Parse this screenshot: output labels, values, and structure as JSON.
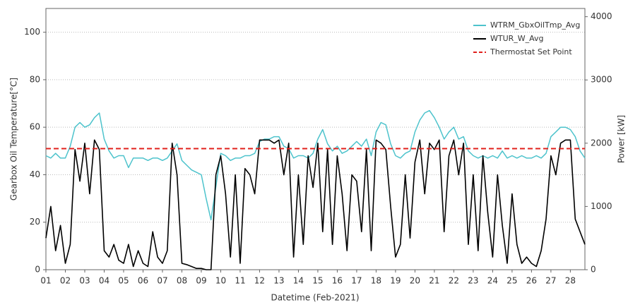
{
  "chart_data": {
    "type": "line",
    "x_label": "Datetime (Feb-2021)",
    "y_label": "Gearbox Oil Temperature[°C]",
    "y2_label": "Power [kW]",
    "xlim": [
      1,
      28.75
    ],
    "ylim": [
      0,
      110
    ],
    "y2lim": [
      0,
      4130
    ],
    "yticks": [
      0,
      20,
      40,
      60,
      80,
      100
    ],
    "y2ticks": [
      0,
      1000,
      2000,
      3000,
      4000
    ],
    "grid": true,
    "legend": "top-right",
    "xticks": [
      {
        "value": 1,
        "label": "01"
      },
      {
        "value": 2,
        "label": "02"
      },
      {
        "value": 3,
        "label": "03"
      },
      {
        "value": 4,
        "label": "04"
      },
      {
        "value": 5,
        "label": "05"
      },
      {
        "value": 6,
        "label": "06"
      },
      {
        "value": 7,
        "label": "07"
      },
      {
        "value": 8,
        "label": "08"
      },
      {
        "value": 9,
        "label": "09"
      },
      10,
      11,
      12,
      13,
      14,
      15,
      16,
      17,
      18,
      19,
      20,
      21,
      22,
      23,
      24,
      25,
      26,
      27,
      28
    ],
    "x": [
      1,
      1.25,
      1.5,
      1.75,
      2,
      2.25,
      2.5,
      2.75,
      3,
      3.25,
      3.5,
      3.75,
      4,
      4.25,
      4.5,
      4.75,
      5,
      5.25,
      5.5,
      5.75,
      6,
      6.25,
      6.5,
      6.75,
      7,
      7.25,
      7.5,
      7.75,
      8,
      8.25,
      8.5,
      8.75,
      9,
      9.25,
      9.5,
      9.75,
      10,
      10.25,
      10.5,
      10.75,
      11,
      11.25,
      11.5,
      11.75,
      12,
      12.25,
      12.5,
      12.75,
      13,
      13.25,
      13.5,
      13.75,
      14,
      14.25,
      14.5,
      14.75,
      15,
      15.25,
      15.5,
      15.75,
      16,
      16.25,
      16.5,
      16.75,
      17,
      17.25,
      17.5,
      17.75,
      18,
      18.25,
      18.5,
      18.75,
      19,
      19.25,
      19.5,
      19.75,
      20,
      20.25,
      20.5,
      20.75,
      21,
      21.25,
      21.5,
      21.75,
      22,
      22.25,
      22.5,
      22.75,
      23,
      23.25,
      23.5,
      23.75,
      24,
      24.25,
      24.5,
      24.75,
      25,
      25.25,
      25.5,
      25.75,
      26,
      26.25,
      26.5,
      26.75,
      27,
      27.25,
      27.5,
      27.75,
      28,
      28.25,
      28.5,
      28.75
    ],
    "series": [
      {
        "name": "WTRM_GbxOilTmp_Avg",
        "color": "#4dc3cc",
        "axis": "y",
        "values": [
          48,
          47,
          49,
          47,
          47,
          52,
          60,
          62,
          60,
          61,
          64,
          66,
          55,
          50,
          47,
          48,
          48,
          43,
          47,
          47,
          47,
          46,
          47,
          47,
          46,
          47,
          50,
          53,
          46,
          44,
          42,
          41,
          40,
          30,
          21,
          35,
          49,
          48,
          46,
          47,
          47,
          48,
          48,
          49,
          54,
          55,
          55,
          56,
          56,
          52,
          51,
          47,
          48,
          48,
          47,
          49,
          55,
          59,
          53,
          50,
          52,
          49,
          50,
          52,
          54,
          52,
          55,
          48,
          58,
          62,
          61,
          53,
          48,
          47,
          49,
          50,
          58,
          63,
          66,
          67,
          64,
          60,
          55,
          58,
          60,
          55,
          56,
          50,
          48,
          47,
          48,
          47,
          48,
          47,
          50,
          47,
          48,
          47,
          48,
          47,
          47,
          48,
          47,
          49,
          56,
          58,
          60,
          60,
          59,
          56,
          50,
          47
        ]
      },
      {
        "name": "WTUR_W_Avg",
        "color": "#000000",
        "axis": "y2",
        "values": [
          500,
          1000,
          300,
          700,
          100,
          400,
          1900,
          1400,
          2000,
          1200,
          2050,
          1900,
          300,
          200,
          400,
          150,
          100,
          400,
          50,
          300,
          100,
          50,
          600,
          200,
          100,
          300,
          2000,
          1500,
          100,
          80,
          50,
          20,
          20,
          0,
          0,
          1500,
          1800,
          1200,
          200,
          1500,
          100,
          1600,
          1500,
          1200,
          2050,
          2050,
          2050,
          2000,
          2050,
          1500,
          2000,
          200,
          1500,
          400,
          1800,
          1300,
          2000,
          600,
          1900,
          400,
          1800,
          1200,
          300,
          1500,
          1400,
          600,
          1900,
          300,
          2050,
          2000,
          1900,
          1000,
          200,
          400,
          1500,
          500,
          1700,
          2050,
          1200,
          2000,
          1900,
          2050,
          600,
          1800,
          2050,
          1500,
          2000,
          400,
          1500,
          300,
          1800,
          900,
          200,
          1500,
          700,
          100,
          1200,
          400,
          100,
          200,
          100,
          50,
          300,
          800,
          1800,
          1500,
          2000,
          2050,
          2050,
          800,
          600,
          400
        ]
      },
      {
        "name": "Thermostat Set Point",
        "color": "#e0201b",
        "axis": "y",
        "style": "dashed",
        "value": 51
      }
    ]
  }
}
